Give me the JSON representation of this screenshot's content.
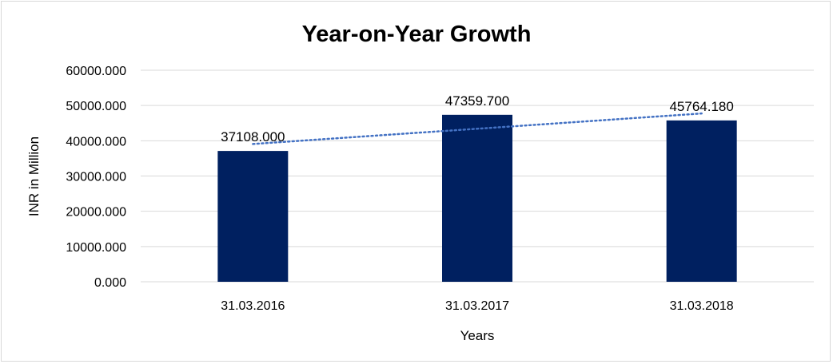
{
  "chart_data": {
    "type": "bar",
    "title": "Year-on-Year Growth",
    "xlabel": "Years",
    "ylabel": "INR in Million",
    "categories": [
      "31.03.2016",
      "31.03.2017",
      "31.03.2018"
    ],
    "values": [
      37108.0,
      47359.7,
      45764.18
    ],
    "value_labels": [
      "37108.000",
      "47359.700",
      "45764.180"
    ],
    "ylim": [
      0,
      60000
    ],
    "yticks": [
      "0.000",
      "10000.000",
      "20000.000",
      "30000.000",
      "40000.000",
      "50000.000",
      "60000.000"
    ],
    "grid": true,
    "trendline": {
      "type": "linear",
      "style": "dotted"
    },
    "colors": {
      "bar": "#002060",
      "trendline": "#4472c4",
      "grid": "#d9d9d9"
    }
  }
}
